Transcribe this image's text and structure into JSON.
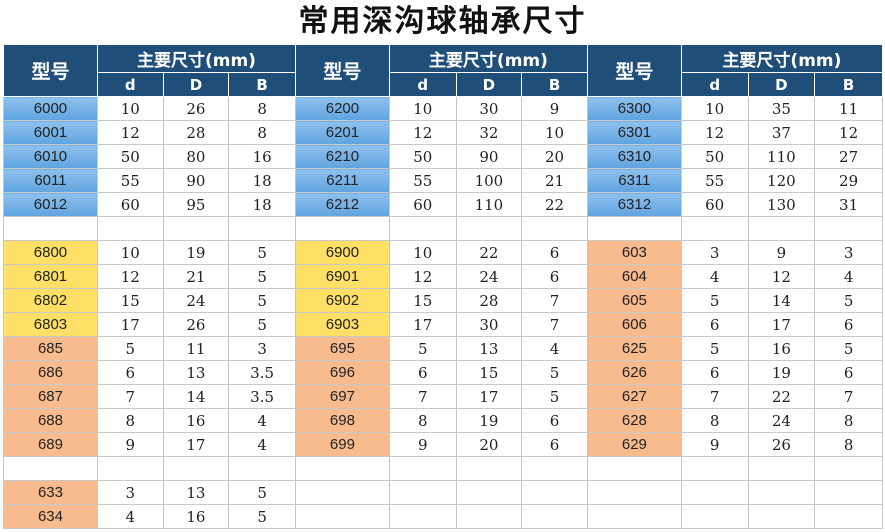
{
  "title": "常用深沟球轴承尺寸",
  "header": {
    "model_label": "型号",
    "group_label": "主要尺寸(mm)",
    "sub_labels": [
      "d",
      "D",
      "B"
    ]
  },
  "colors": {
    "header_bg": "#1f4e79",
    "blue": "#6aa8e0",
    "yellow": "#ffe066",
    "orange": "#f8bb8d"
  },
  "rows": [
    [
      [
        "6000",
        "blue",
        "10",
        "26",
        "8"
      ],
      [
        "6200",
        "blue",
        "10",
        "30",
        "9"
      ],
      [
        "6300",
        "blue",
        "10",
        "35",
        "11"
      ]
    ],
    [
      [
        "6001",
        "blue",
        "12",
        "28",
        "8"
      ],
      [
        "6201",
        "blue",
        "12",
        "32",
        "10"
      ],
      [
        "6301",
        "blue",
        "12",
        "37",
        "12"
      ]
    ],
    [
      [
        "6010",
        "blue",
        "50",
        "80",
        "16"
      ],
      [
        "6210",
        "blue",
        "50",
        "90",
        "20"
      ],
      [
        "6310",
        "blue",
        "50",
        "110",
        "27"
      ]
    ],
    [
      [
        "6011",
        "blue",
        "55",
        "90",
        "18"
      ],
      [
        "6211",
        "blue",
        "55",
        "100",
        "21"
      ],
      [
        "6311",
        "blue",
        "55",
        "120",
        "29"
      ]
    ],
    [
      [
        "6012",
        "blue",
        "60",
        "95",
        "18"
      ],
      [
        "6212",
        "blue",
        "60",
        "110",
        "22"
      ],
      [
        "6312",
        "blue",
        "60",
        "130",
        "31"
      ]
    ],
    [
      [
        "",
        "empty",
        "",
        "",
        ""
      ],
      [
        "",
        "empty",
        "",
        "",
        ""
      ],
      [
        "",
        "empty",
        "",
        "",
        ""
      ]
    ],
    [
      [
        "6800",
        "yellow",
        "10",
        "19",
        "5"
      ],
      [
        "6900",
        "yellow",
        "10",
        "22",
        "6"
      ],
      [
        "603",
        "orange",
        "3",
        "9",
        "3"
      ]
    ],
    [
      [
        "6801",
        "yellow",
        "12",
        "21",
        "5"
      ],
      [
        "6901",
        "yellow",
        "12",
        "24",
        "6"
      ],
      [
        "604",
        "orange",
        "4",
        "12",
        "4"
      ]
    ],
    [
      [
        "6802",
        "yellow",
        "15",
        "24",
        "5"
      ],
      [
        "6902",
        "yellow",
        "15",
        "28",
        "7"
      ],
      [
        "605",
        "orange",
        "5",
        "14",
        "5"
      ]
    ],
    [
      [
        "6803",
        "yellow",
        "17",
        "26",
        "5"
      ],
      [
        "6903",
        "yellow",
        "17",
        "30",
        "7"
      ],
      [
        "606",
        "orange",
        "6",
        "17",
        "6"
      ]
    ],
    [
      [
        "685",
        "orange",
        "5",
        "11",
        "3"
      ],
      [
        "695",
        "orange",
        "5",
        "13",
        "4"
      ],
      [
        "625",
        "orange",
        "5",
        "16",
        "5"
      ]
    ],
    [
      [
        "686",
        "orange",
        "6",
        "13",
        "3.5"
      ],
      [
        "696",
        "orange",
        "6",
        "15",
        "5"
      ],
      [
        "626",
        "orange",
        "6",
        "19",
        "6"
      ]
    ],
    [
      [
        "687",
        "orange",
        "7",
        "14",
        "3.5"
      ],
      [
        "697",
        "orange",
        "7",
        "17",
        "5"
      ],
      [
        "627",
        "orange",
        "7",
        "22",
        "7"
      ]
    ],
    [
      [
        "688",
        "orange",
        "8",
        "16",
        "4"
      ],
      [
        "698",
        "orange",
        "8",
        "19",
        "6"
      ],
      [
        "628",
        "orange",
        "8",
        "24",
        "8"
      ]
    ],
    [
      [
        "689",
        "orange",
        "9",
        "17",
        "4"
      ],
      [
        "699",
        "orange",
        "9",
        "20",
        "6"
      ],
      [
        "629",
        "orange",
        "9",
        "26",
        "8"
      ]
    ],
    [
      [
        "",
        "empty",
        "",
        "",
        ""
      ],
      [
        "",
        "empty",
        "",
        "",
        ""
      ],
      [
        "",
        "empty",
        "",
        "",
        ""
      ]
    ],
    [
      [
        "633",
        "orange",
        "3",
        "13",
        "5"
      ],
      [
        "",
        "empty",
        "",
        "",
        ""
      ],
      [
        "",
        "empty",
        "",
        "",
        ""
      ]
    ],
    [
      [
        "634",
        "orange",
        "4",
        "16",
        "5"
      ],
      [
        "",
        "empty",
        "",
        "",
        ""
      ],
      [
        "",
        "empty",
        "",
        "",
        ""
      ]
    ]
  ]
}
